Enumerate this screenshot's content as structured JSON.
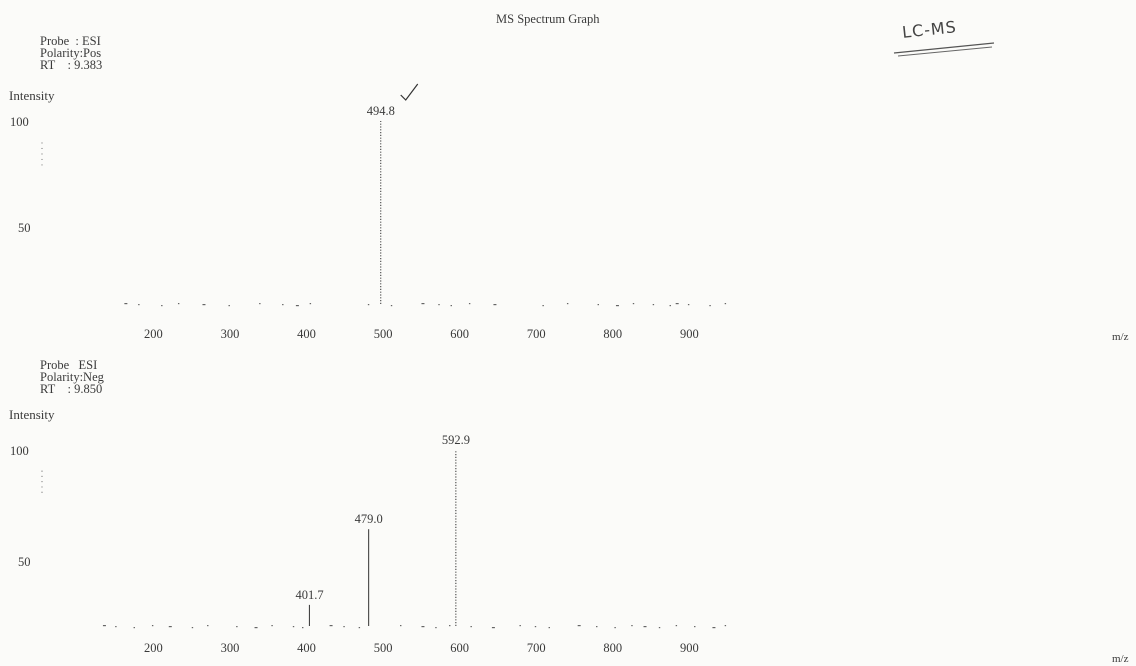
{
  "title": "MS Spectrum Graph",
  "annotation": {
    "text": "LC-MS"
  },
  "chart_data": [
    {
      "type": "bar",
      "probe_line": "Probe  : ESI",
      "polarity_line": "Polarity:Pos",
      "rt_line": "RT    : 9.383",
      "ylabel": "Intensity",
      "xlabel": "m/z",
      "xlim": [
        100,
        950
      ],
      "ylim": [
        0,
        100
      ],
      "xticks": [
        "200",
        "300",
        "400",
        "500",
        "600",
        "700",
        "800",
        "900"
      ],
      "yticks": [
        "100",
        "50"
      ],
      "peaks": [
        {
          "x": 494.8,
          "y": 100,
          "label": "494.8",
          "marked": true
        }
      ],
      "noise_x": [
        160,
        178,
        208,
        230,
        262,
        296,
        336,
        366,
        384,
        402,
        478,
        508,
        548,
        570,
        586,
        610,
        642,
        706,
        738,
        778,
        802,
        824,
        850,
        872,
        880,
        896,
        924,
        944
      ],
      "grid": false
    },
    {
      "type": "bar",
      "probe_line": "Probe   ESI",
      "polarity_line": "Polarity:Neg",
      "rt_line": "RT    : 9.850",
      "ylabel": "Intensity",
      "xlabel": "m/z",
      "xlim": [
        100,
        950
      ],
      "ylim": [
        0,
        100
      ],
      "xticks": [
        "200",
        "300",
        "400",
        "500",
        "600",
        "700",
        "800",
        "900"
      ],
      "yticks": [
        "100",
        "50"
      ],
      "peaks": [
        {
          "x": 592.9,
          "y": 100,
          "label": "592.9",
          "marked": false
        },
        {
          "x": 479.0,
          "y": 55,
          "label": "479.0",
          "marked": false
        },
        {
          "x": 401.7,
          "y": 12,
          "label": "401.7",
          "marked": false
        }
      ],
      "noise_x": [
        132,
        148,
        172,
        196,
        218,
        248,
        268,
        306,
        330,
        352,
        380,
        392,
        428,
        446,
        466,
        520,
        548,
        566,
        584,
        612,
        640,
        676,
        696,
        714,
        752,
        776,
        800,
        822,
        838,
        858,
        880,
        904,
        928,
        944
      ],
      "grid": false
    }
  ]
}
